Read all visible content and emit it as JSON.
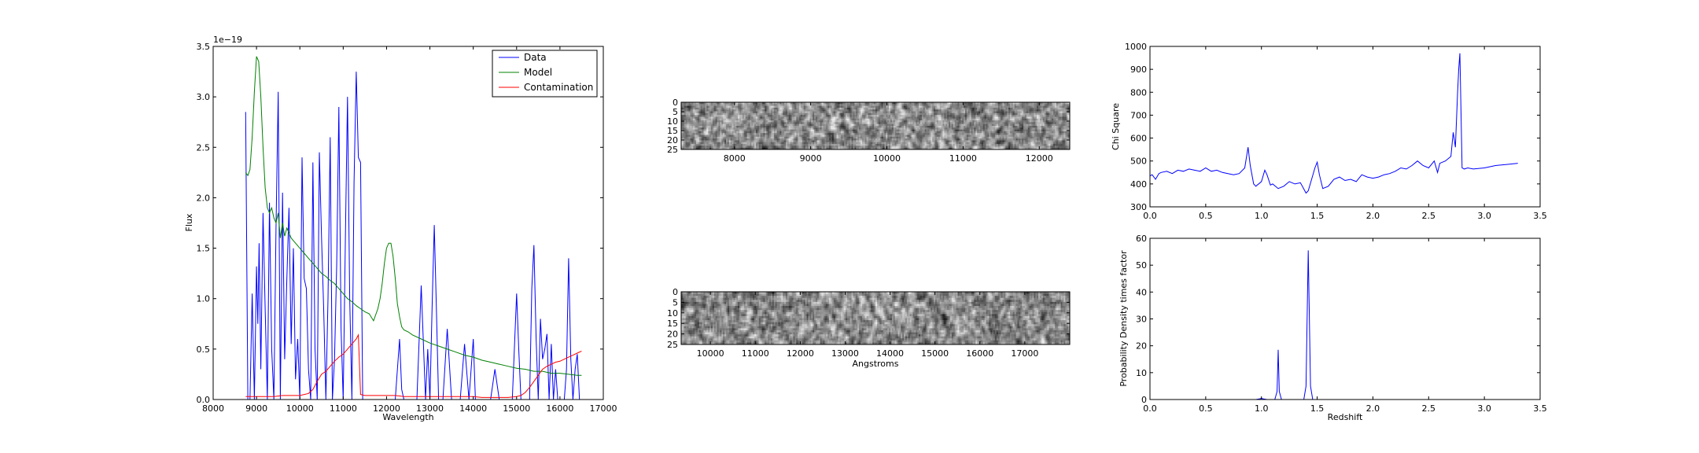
{
  "chart_data": [
    {
      "type": "line",
      "xlabel": "Wavelength",
      "ylabel": "Flux",
      "xlim": [
        8000,
        17000
      ],
      "ylim": [
        0,
        3.5
      ],
      "y_multiplier": "1e−19",
      "xticks": [
        8000,
        9000,
        10000,
        11000,
        12000,
        13000,
        14000,
        15000,
        16000,
        17000
      ],
      "yticks": [
        0.0,
        0.5,
        1.0,
        1.5,
        2.0,
        2.5,
        3.0,
        3.5
      ],
      "grid": false,
      "legend_position": "top-right",
      "series": [
        {
          "name": "Data",
          "color": "#0000ff",
          "x": [
            8750,
            8800,
            8850,
            8900,
            8950,
            9000,
            9030,
            9060,
            9100,
            9150,
            9200,
            9250,
            9300,
            9350,
            9400,
            9450,
            9500,
            9550,
            9600,
            9650,
            9700,
            9750,
            9800,
            9850,
            9900,
            9950,
            10000,
            10050,
            10100,
            10150,
            10200,
            10250,
            10300,
            10350,
            10400,
            10450,
            10500,
            10550,
            10600,
            10650,
            10700,
            10750,
            10800,
            10850,
            10900,
            10950,
            11000,
            11050,
            11100,
            11150,
            11200,
            11250,
            11300,
            11350,
            11400,
            11450,
            11500,
            11600,
            11700,
            11800,
            11900,
            12000,
            12100,
            12200,
            12300,
            12350,
            12400,
            12500,
            12600,
            12700,
            12800,
            12900,
            12950,
            13000,
            13050,
            13100,
            13150,
            13200,
            13250,
            13300,
            13400,
            13500,
            13550,
            13600,
            13700,
            13800,
            13900,
            14000,
            14050,
            14100,
            14150,
            14200,
            14250,
            14300,
            14400,
            14500,
            14600,
            14700,
            14750,
            14800,
            14900,
            15000,
            15050,
            15100,
            15150,
            15200,
            15300,
            15350,
            15400,
            15450,
            15500,
            15550,
            15600,
            15650,
            15700,
            15750,
            15800,
            15850,
            15900,
            15950,
            16000,
            16050,
            16100,
            16150,
            16200,
            16250,
            16300,
            16350,
            16400,
            16450,
            16500
          ],
          "y": [
            2.85,
            0.0,
            0.0,
            1.05,
            0.0,
            1.32,
            0.75,
            1.55,
            0.3,
            1.85,
            0.9,
            0.0,
            1.95,
            0.5,
            0.0,
            1.7,
            3.05,
            0.0,
            2.05,
            0.4,
            1.2,
            1.9,
            0.55,
            1.5,
            0.2,
            0.6,
            0.0,
            2.4,
            1.2,
            1.1,
            0.3,
            0.0,
            2.35,
            0.5,
            0.0,
            2.45,
            1.6,
            0.9,
            0.0,
            1.0,
            2.6,
            0.0,
            0.4,
            1.35,
            2.9,
            0.7,
            0.0,
            1.6,
            3.0,
            1.0,
            0.0,
            2.15,
            3.25,
            2.4,
            2.35,
            0.0,
            0.0,
            0.0,
            0.0,
            0.0,
            0.0,
            0.0,
            0.0,
            0.0,
            0.6,
            0.1,
            0.0,
            0.0,
            0.0,
            0.0,
            1.13,
            0.0,
            0.5,
            0.0,
            0.9,
            1.73,
            0.9,
            0.0,
            0.0,
            0.0,
            0.7,
            0.0,
            0.0,
            0.0,
            0.0,
            0.55,
            0.0,
            0.6,
            0.0,
            0.0,
            0.0,
            0.0,
            0.0,
            0.0,
            0.0,
            0.3,
            0.0,
            0.0,
            0.0,
            0.0,
            0.0,
            1.05,
            0.5,
            0.0,
            0.0,
            0.0,
            0.0,
            1.1,
            1.53,
            0.6,
            0.0,
            0.8,
            0.4,
            0.5,
            0.65,
            0.0,
            0.55,
            0.0,
            0.3,
            0.0,
            0.0,
            0.0,
            0.0,
            0.3,
            1.4,
            0.4,
            0.0,
            0.3,
            0.45,
            0.0,
            0.0
          ]
        },
        {
          "name": "Model",
          "color": "#008000",
          "x": [
            8750,
            8800,
            8850,
            8900,
            8950,
            9000,
            9050,
            9100,
            9150,
            9200,
            9250,
            9300,
            9350,
            9400,
            9450,
            9500,
            9550,
            9600,
            9650,
            9700,
            9800,
            9900,
            10000,
            10100,
            10200,
            10300,
            10400,
            10500,
            10600,
            10700,
            10800,
            10900,
            11000,
            11100,
            11200,
            11300,
            11400,
            11500,
            11600,
            11700,
            11800,
            11850,
            11900,
            11950,
            12000,
            12050,
            12100,
            12150,
            12200,
            12250,
            12300,
            12350,
            12400,
            12500,
            12600,
            12800,
            13000,
            13200,
            13400,
            13600,
            13800,
            14000,
            14200,
            14400,
            14600,
            14800,
            15000,
            15200,
            15400,
            15600,
            15800,
            16000,
            16200,
            16400,
            16500
          ],
          "y": [
            2.25,
            2.22,
            2.28,
            2.6,
            3.05,
            3.4,
            3.35,
            3.0,
            2.5,
            2.1,
            1.9,
            1.85,
            1.9,
            1.8,
            1.75,
            1.85,
            1.6,
            1.75,
            1.62,
            1.7,
            1.6,
            1.55,
            1.5,
            1.45,
            1.4,
            1.35,
            1.3,
            1.25,
            1.22,
            1.18,
            1.15,
            1.1,
            1.05,
            1.0,
            0.97,
            0.93,
            0.9,
            0.87,
            0.85,
            0.78,
            0.9,
            1.0,
            1.15,
            1.35,
            1.5,
            1.55,
            1.55,
            1.42,
            1.2,
            0.95,
            0.82,
            0.72,
            0.69,
            0.67,
            0.64,
            0.6,
            0.56,
            0.53,
            0.5,
            0.47,
            0.44,
            0.42,
            0.39,
            0.37,
            0.35,
            0.33,
            0.31,
            0.3,
            0.28,
            0.28,
            0.26,
            0.26,
            0.25,
            0.24,
            0.24
          ]
        },
        {
          "name": "Contamination",
          "color": "#ff0000",
          "x": [
            8750,
            9000,
            9200,
            9400,
            9600,
            9800,
            10000,
            10100,
            10200,
            10300,
            10400,
            10500,
            10600,
            10700,
            10800,
            10900,
            11000,
            11100,
            11200,
            11300,
            11350,
            11400,
            11500,
            11600,
            11700,
            11800,
            12000,
            12200,
            12400,
            12600,
            12800,
            13000,
            13200,
            13400,
            13600,
            13800,
            14000,
            14200,
            14400,
            14600,
            14800,
            15000,
            15100,
            15200,
            15300,
            15400,
            15500,
            15600,
            15700,
            15800,
            15900,
            16000,
            16100,
            16200,
            16300,
            16400,
            16500
          ],
          "y": [
            0.03,
            0.03,
            0.03,
            0.03,
            0.04,
            0.04,
            0.04,
            0.05,
            0.06,
            0.1,
            0.18,
            0.25,
            0.28,
            0.33,
            0.38,
            0.42,
            0.45,
            0.5,
            0.55,
            0.6,
            0.64,
            0.05,
            0.04,
            0.04,
            0.04,
            0.04,
            0.04,
            0.04,
            0.03,
            0.03,
            0.03,
            0.03,
            0.03,
            0.03,
            0.03,
            0.03,
            0.03,
            0.02,
            0.02,
            0.02,
            0.02,
            0.03,
            0.04,
            0.07,
            0.12,
            0.18,
            0.24,
            0.3,
            0.33,
            0.35,
            0.37,
            0.38,
            0.4,
            0.42,
            0.44,
            0.46,
            0.48
          ]
        }
      ]
    },
    {
      "type": "heatmap",
      "colormap": "gray",
      "ylim": [
        0,
        25
      ],
      "yticks": [
        0,
        5,
        10,
        15,
        20,
        25
      ],
      "xlim": [
        7300,
        12400
      ],
      "xticks": [
        8000,
        9000,
        10000,
        11000,
        12000
      ],
      "xlabel": "",
      "rows": 26,
      "cols": 260
    },
    {
      "type": "heatmap",
      "colormap": "gray",
      "ylim": [
        0,
        25
      ],
      "yticks": [
        0,
        5,
        10,
        15,
        20,
        25
      ],
      "xlim": [
        9350,
        18000
      ],
      "xticks": [
        10000,
        11000,
        12000,
        13000,
        14000,
        15000,
        16000,
        17000
      ],
      "xlabel": "Angstroms",
      "rows": 26,
      "cols": 260
    },
    {
      "type": "line",
      "xlabel": "",
      "ylabel": "Chi Square",
      "xlim": [
        0,
        3.5
      ],
      "ylim": [
        300,
        1000
      ],
      "xticks": [
        0.0,
        0.5,
        1.0,
        1.5,
        2.0,
        2.5,
        3.0,
        3.5
      ],
      "yticks": [
        300,
        400,
        500,
        600,
        700,
        800,
        900,
        1000
      ],
      "series": [
        {
          "color": "#0000ff",
          "x": [
            0.0,
            0.02,
            0.05,
            0.08,
            0.1,
            0.15,
            0.2,
            0.25,
            0.3,
            0.35,
            0.4,
            0.45,
            0.5,
            0.55,
            0.6,
            0.65,
            0.7,
            0.75,
            0.8,
            0.85,
            0.87,
            0.88,
            0.9,
            0.93,
            0.95,
            1.0,
            1.03,
            1.05,
            1.08,
            1.1,
            1.15,
            1.2,
            1.25,
            1.3,
            1.35,
            1.4,
            1.42,
            1.45,
            1.48,
            1.5,
            1.52,
            1.55,
            1.6,
            1.65,
            1.7,
            1.75,
            1.8,
            1.85,
            1.9,
            1.95,
            2.0,
            2.05,
            2.1,
            2.15,
            2.2,
            2.25,
            2.3,
            2.35,
            2.4,
            2.45,
            2.5,
            2.55,
            2.58,
            2.6,
            2.65,
            2.7,
            2.72,
            2.74,
            2.76,
            2.77,
            2.78,
            2.79,
            2.8,
            2.82,
            2.85,
            2.9,
            3.0,
            3.1,
            3.2,
            3.3
          ],
          "y": [
            435,
            440,
            420,
            445,
            450,
            455,
            445,
            460,
            455,
            465,
            460,
            455,
            470,
            455,
            460,
            450,
            445,
            440,
            445,
            470,
            530,
            560,
            480,
            400,
            390,
            410,
            460,
            440,
            395,
            400,
            380,
            390,
            410,
            400,
            405,
            360,
            370,
            420,
            470,
            495,
            440,
            380,
            390,
            420,
            430,
            415,
            420,
            410,
            440,
            430,
            425,
            430,
            440,
            445,
            455,
            470,
            465,
            480,
            500,
            480,
            470,
            500,
            450,
            490,
            500,
            520,
            625,
            560,
            800,
            900,
            970,
            720,
            470,
            465,
            470,
            465,
            470,
            480,
            485,
            490
          ]
        }
      ]
    },
    {
      "type": "line",
      "xlabel": "Redshift",
      "ylabel": "Probability Density times factor",
      "xlim": [
        0,
        3.5
      ],
      "ylim": [
        0,
        60
      ],
      "xticks": [
        0.0,
        0.5,
        1.0,
        1.5,
        2.0,
        2.5,
        3.0,
        3.5
      ],
      "yticks": [
        0,
        10,
        20,
        30,
        40,
        50,
        60
      ],
      "series": [
        {
          "color": "#0000ff",
          "x": [
            0.0,
            0.95,
            0.99,
            1.0,
            1.01,
            1.05,
            1.12,
            1.14,
            1.15,
            1.16,
            1.18,
            1.38,
            1.4,
            1.42,
            1.44,
            1.46,
            1.5,
            2.0,
            3.3
          ],
          "y": [
            0,
            0,
            0.3,
            0.5,
            0.3,
            0,
            0,
            3,
            18.5,
            3,
            0,
            0,
            5,
            55.5,
            5,
            0,
            0,
            0,
            0
          ]
        }
      ]
    }
  ]
}
